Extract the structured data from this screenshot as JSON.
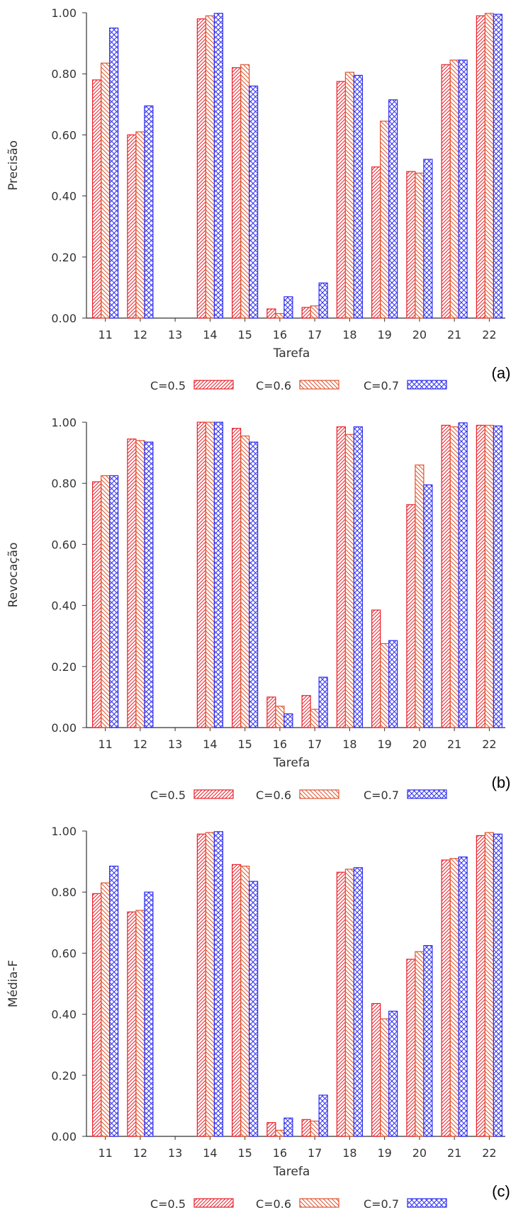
{
  "colors": {
    "c05": "#e8202a",
    "c06": "#e0542e",
    "c07": "#2e2ef0",
    "axis": "#333333"
  },
  "chart_data": [
    {
      "type": "bar",
      "tag": "(a)",
      "ylabel": "Precisão",
      "xlabel": "Tarefa",
      "ylim": [
        0,
        1
      ],
      "yticks": [
        "0.00",
        "0.20",
        "0.40",
        "0.60",
        "0.80",
        "1.00"
      ],
      "categories": [
        "11",
        "12",
        "13",
        "14",
        "15",
        "16",
        "17",
        "18",
        "19",
        "20",
        "21",
        "22"
      ],
      "series": [
        {
          "name": "C=0.5",
          "values": [
            0.78,
            0.6,
            0,
            0.98,
            0.82,
            0.03,
            0.035,
            0.775,
            0.495,
            0.48,
            0.83,
            0.99
          ]
        },
        {
          "name": "C=0.6",
          "values": [
            0.835,
            0.61,
            0,
            0.99,
            0.83,
            0.015,
            0.04,
            0.805,
            0.645,
            0.475,
            0.845,
            0.998
          ]
        },
        {
          "name": "C=0.7",
          "values": [
            0.95,
            0.695,
            0,
            0.998,
            0.76,
            0.07,
            0.115,
            0.795,
            0.715,
            0.52,
            0.845,
            0.995
          ]
        }
      ],
      "legend": "bottom"
    },
    {
      "type": "bar",
      "tag": "(b)",
      "ylabel": "Revocação",
      "xlabel": "Tarefa",
      "ylim": [
        0,
        1
      ],
      "yticks": [
        "0.00",
        "0.20",
        "0.40",
        "0.60",
        "0.80",
        "1.00"
      ],
      "categories": [
        "11",
        "12",
        "13",
        "14",
        "15",
        "16",
        "17",
        "18",
        "19",
        "20",
        "21",
        "22"
      ],
      "series": [
        {
          "name": "C=0.5",
          "values": [
            0.805,
            0.945,
            0,
            1.0,
            0.98,
            0.1,
            0.105,
            0.985,
            0.385,
            0.73,
            0.99,
            0.99
          ]
        },
        {
          "name": "C=0.6",
          "values": [
            0.825,
            0.94,
            0,
            1.0,
            0.955,
            0.07,
            0.06,
            0.96,
            0.275,
            0.86,
            0.985,
            0.99
          ]
        },
        {
          "name": "C=0.7",
          "values": [
            0.825,
            0.935,
            0,
            1.0,
            0.935,
            0.045,
            0.165,
            0.985,
            0.285,
            0.795,
            0.998,
            0.988
          ]
        }
      ],
      "legend": "bottom"
    },
    {
      "type": "bar",
      "tag": "(c)",
      "ylabel": "Média-F",
      "xlabel": "Tarefa",
      "ylim": [
        0,
        1
      ],
      "yticks": [
        "0.00",
        "0.20",
        "0.40",
        "0.60",
        "0.80",
        "1.00"
      ],
      "categories": [
        "11",
        "12",
        "13",
        "14",
        "15",
        "16",
        "17",
        "18",
        "19",
        "20",
        "21",
        "22"
      ],
      "series": [
        {
          "name": "C=0.5",
          "values": [
            0.795,
            0.735,
            0,
            0.99,
            0.89,
            0.045,
            0.055,
            0.865,
            0.435,
            0.58,
            0.905,
            0.985
          ]
        },
        {
          "name": "C=0.6",
          "values": [
            0.83,
            0.74,
            0,
            0.995,
            0.885,
            0.02,
            0.05,
            0.875,
            0.385,
            0.605,
            0.91,
            0.995
          ]
        },
        {
          "name": "C=0.7",
          "values": [
            0.885,
            0.8,
            0,
            0.998,
            0.835,
            0.06,
            0.135,
            0.88,
            0.41,
            0.625,
            0.915,
            0.99
          ]
        }
      ],
      "legend": "bottom"
    }
  ]
}
